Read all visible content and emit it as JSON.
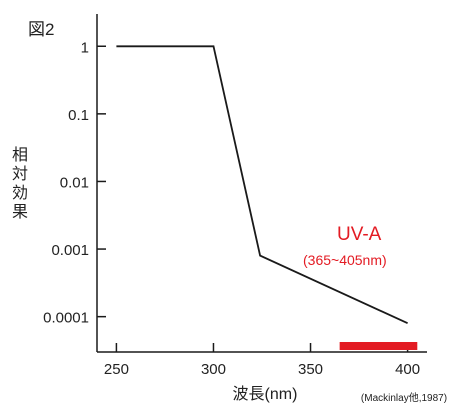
{
  "figure_label": "図2",
  "chart_data": {
    "type": "line",
    "xlabel": "波長(nm)",
    "ylabel": "相対効果",
    "yscale": "log",
    "xlim": [
      240,
      410
    ],
    "ylim": [
      3e-05,
      3
    ],
    "x_ticks": [
      250,
      300,
      350,
      400
    ],
    "x_tick_labels": [
      "250",
      "300",
      "350",
      "400"
    ],
    "y_ticks": [
      1,
      0.1,
      0.01,
      0.001,
      0.0001
    ],
    "y_tick_labels": [
      "1",
      "0.1",
      "0.01",
      "0.001",
      "0.0001"
    ],
    "grid": false,
    "series": [
      {
        "color": "#1a1a1a",
        "points": [
          {
            "x": 250,
            "y": 1
          },
          {
            "x": 300,
            "y": 1
          },
          {
            "x": 324,
            "y": 0.0008
          },
          {
            "x": 400,
            "y": 8e-05
          }
        ]
      }
    ],
    "annotations": {
      "band_label": "UV-A",
      "band_range_label": "(365~405nm)",
      "band_range": [
        365,
        405
      ],
      "band_color": "#e31b23",
      "citation": "(Mackinlay他,1987)"
    }
  }
}
